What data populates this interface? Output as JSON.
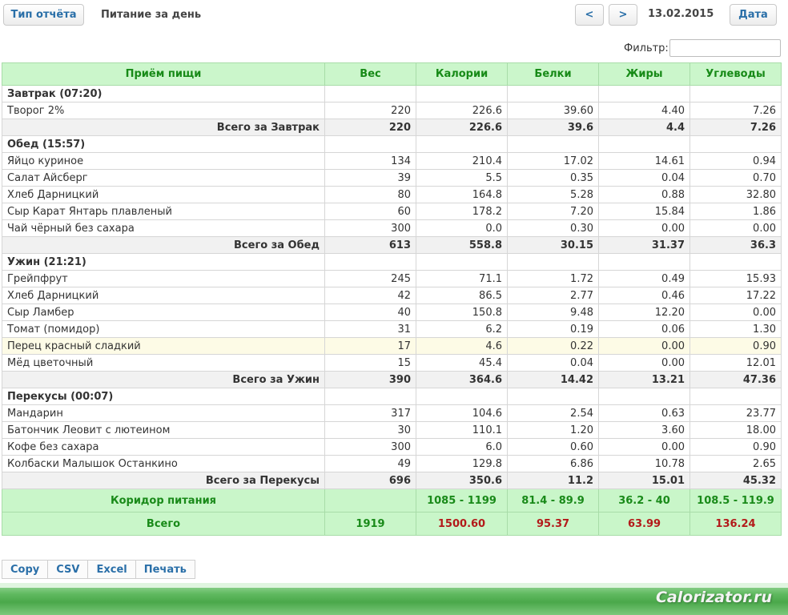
{
  "toolbar": {
    "report_type_label": "Тип отчёта",
    "report_title": "Питание за день",
    "prev_label": "<",
    "next_label": ">",
    "date": "13.02.2015",
    "date_button_label": "Дата"
  },
  "filter": {
    "label": "Фильтр:",
    "value": ""
  },
  "table": {
    "headers": [
      "Приём пищи",
      "Вес",
      "Калории",
      "Белки",
      "Жиры",
      "Углеводы"
    ],
    "rows": [
      {
        "type": "group",
        "name": "Завтрак (07:20)"
      },
      {
        "type": "item",
        "name": "Творог 2%",
        "values": [
          "220",
          "226.6",
          "39.60",
          "4.40",
          "7.26"
        ]
      },
      {
        "type": "subtotal",
        "name": "Всего за Завтрак",
        "values": [
          "220",
          "226.6",
          "39.6",
          "4.4",
          "7.26"
        ]
      },
      {
        "type": "group",
        "name": "Обед (15:57)"
      },
      {
        "type": "item",
        "name": "Яйцо куриное",
        "values": [
          "134",
          "210.4",
          "17.02",
          "14.61",
          "0.94"
        ]
      },
      {
        "type": "item",
        "name": "Салат Айсберг",
        "values": [
          "39",
          "5.5",
          "0.35",
          "0.04",
          "0.70"
        ]
      },
      {
        "type": "item",
        "name": "Хлеб Дарницкий",
        "values": [
          "80",
          "164.8",
          "5.28",
          "0.88",
          "32.80"
        ]
      },
      {
        "type": "item",
        "name": "Сыр Карат Янтарь плавленый",
        "values": [
          "60",
          "178.2",
          "7.20",
          "15.84",
          "1.86"
        ]
      },
      {
        "type": "item",
        "name": "Чай чёрный без сахара",
        "values": [
          "300",
          "0.0",
          "0.30",
          "0.00",
          "0.00"
        ]
      },
      {
        "type": "subtotal",
        "name": "Всего за Обед",
        "values": [
          "613",
          "558.8",
          "30.15",
          "31.37",
          "36.3"
        ]
      },
      {
        "type": "group",
        "name": "Ужин (21:21)"
      },
      {
        "type": "item",
        "name": "Грейпфрут",
        "values": [
          "245",
          "71.1",
          "1.72",
          "0.49",
          "15.93"
        ]
      },
      {
        "type": "item",
        "name": "Хлеб Дарницкий",
        "values": [
          "42",
          "86.5",
          "2.77",
          "0.46",
          "17.22"
        ]
      },
      {
        "type": "item",
        "name": "Сыр Ламбер",
        "values": [
          "40",
          "150.8",
          "9.48",
          "12.20",
          "0.00"
        ]
      },
      {
        "type": "item",
        "name": "Томат (помидор)",
        "values": [
          "31",
          "6.2",
          "0.19",
          "0.06",
          "1.30"
        ]
      },
      {
        "type": "item",
        "name": "Перец красный сладкий",
        "values": [
          "17",
          "4.6",
          "0.22",
          "0.00",
          "0.90"
        ],
        "highlight": true
      },
      {
        "type": "item",
        "name": "Мёд цветочный",
        "values": [
          "15",
          "45.4",
          "0.04",
          "0.00",
          "12.01"
        ]
      },
      {
        "type": "subtotal",
        "name": "Всего за Ужин",
        "values": [
          "390",
          "364.6",
          "14.42",
          "13.21",
          "47.36"
        ]
      },
      {
        "type": "group",
        "name": "Перекусы (00:07)"
      },
      {
        "type": "item",
        "name": "Мандарин",
        "values": [
          "317",
          "104.6",
          "2.54",
          "0.63",
          "23.77"
        ]
      },
      {
        "type": "item",
        "name": "Батончик Леовит с лютеином",
        "values": [
          "30",
          "110.1",
          "1.20",
          "3.60",
          "18.00"
        ]
      },
      {
        "type": "item",
        "name": "Кофе без сахара",
        "values": [
          "300",
          "6.0",
          "0.60",
          "0.00",
          "0.90"
        ]
      },
      {
        "type": "item",
        "name": "Колбаски Малышок Останкино",
        "values": [
          "49",
          "129.8",
          "6.86",
          "10.78",
          "2.65"
        ]
      },
      {
        "type": "subtotal",
        "name": "Всего за Перекусы",
        "values": [
          "696",
          "350.6",
          "11.2",
          "15.01",
          "45.32"
        ]
      }
    ],
    "corridor": {
      "label": "Коридор питания",
      "values": [
        "",
        "1085 - 1199",
        "81.4 - 89.9",
        "36.2 - 40",
        "108.5 - 119.9"
      ]
    },
    "total": {
      "label": "Всего",
      "values": [
        "1919",
        "1500.60",
        "95.37",
        "63.99",
        "136.24"
      ]
    }
  },
  "export": [
    "Copy",
    "CSV",
    "Excel",
    "Печать"
  ],
  "watermark": "Calorizator.ru",
  "colors": {
    "header_bg": "#cbf6cb",
    "header_text": "#178a17",
    "total_red": "#b31a1a"
  }
}
